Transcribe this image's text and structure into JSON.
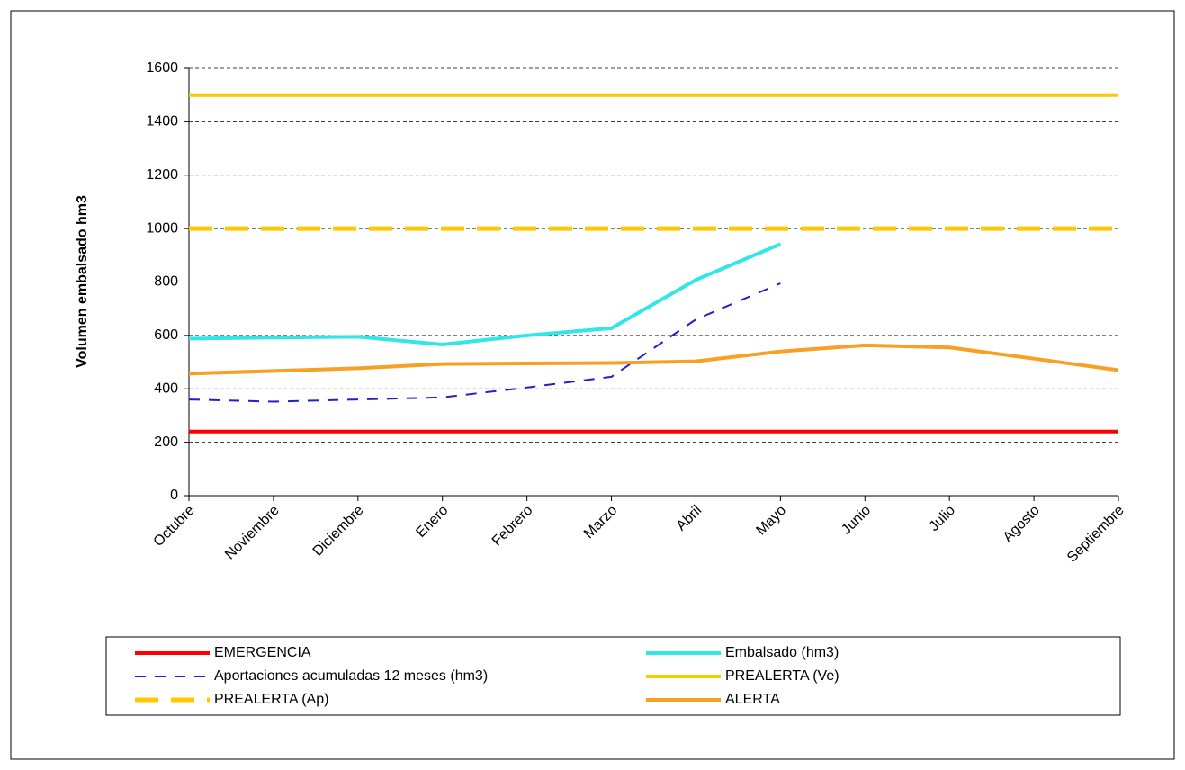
{
  "chart_data": {
    "type": "line",
    "y_label": "Volumen embalsado hm3",
    "categories": [
      "Octubre",
      "Noviembre",
      "Diciembre",
      "Enero",
      "Febrero",
      "Marzo",
      "Abril",
      "Mayo",
      "Junio",
      "Julio",
      "Agosto",
      "Septiembre"
    ],
    "ylim": [
      0,
      1600
    ],
    "yticks": [
      0,
      200,
      400,
      600,
      800,
      1000,
      1200,
      1400,
      1600
    ],
    "grid": true,
    "series": [
      {
        "name": "EMERGENCIA",
        "color": "#ff0000",
        "line_style": "solid",
        "values": [
          240,
          240,
          240,
          240,
          240,
          240,
          240,
          240,
          240,
          240,
          240,
          240
        ]
      },
      {
        "name": "Embalsado (hm3)",
        "color": "#33e6e6",
        "line_style": "solid",
        "values": [
          588,
          592,
          595,
          566,
          600,
          627,
          808,
          942,
          null,
          null,
          null,
          null
        ]
      },
      {
        "name": "Aportaciones acumuladas 12 meses (hm3)",
        "color": "#2020cc",
        "line_style": "dashed",
        "values": [
          360,
          352,
          360,
          368,
          405,
          445,
          660,
          795,
          null,
          null,
          null,
          null
        ]
      },
      {
        "name": "PREALERTA (Ve)",
        "color": "#ffc800",
        "line_style": "solid",
        "values": [
          1500,
          1500,
          1500,
          1500,
          1500,
          1500,
          1500,
          1500,
          1500,
          1500,
          1500,
          1500
        ]
      },
      {
        "name": "PREALERTA (Ap)",
        "color": "#ffc800",
        "line_style": "long-dashed",
        "values": [
          1000,
          1000,
          1000,
          1000,
          1000,
          1000,
          1000,
          1000,
          1000,
          1000,
          1000,
          1000
        ]
      },
      {
        "name": "ALERTA",
        "color": "#f7a025",
        "line_style": "solid",
        "values": [
          457,
          467,
          477,
          493,
          495,
          497,
          503,
          540,
          563,
          555,
          513,
          470
        ]
      }
    ]
  }
}
